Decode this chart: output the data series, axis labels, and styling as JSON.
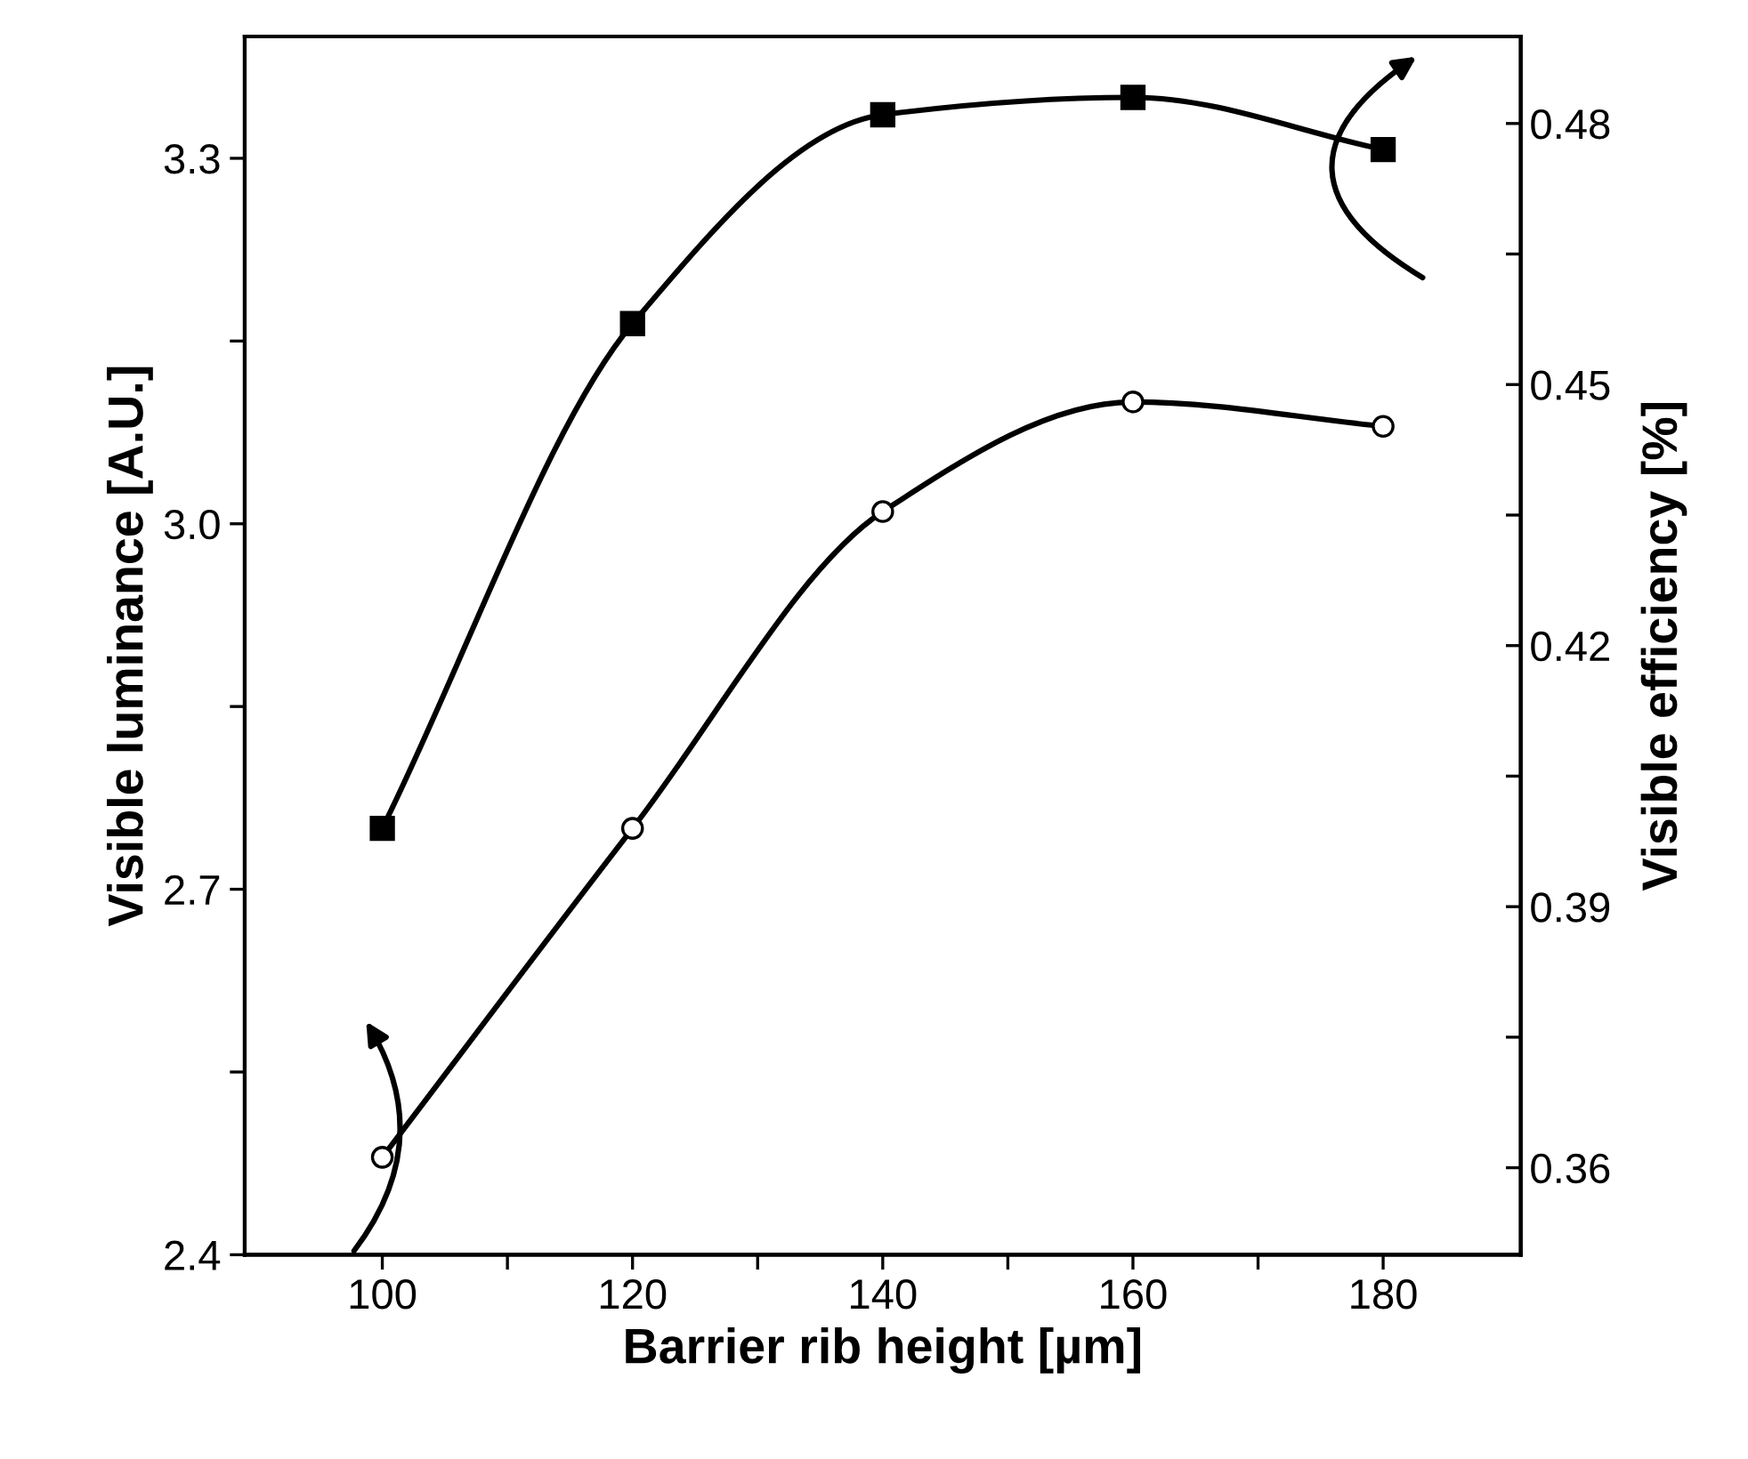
{
  "chart_data": {
    "type": "line",
    "xlabel": "Barrier rib height [µm]",
    "ylabel": "Visible luminance [A.U.]",
    "y2label": "Visible efficiency [%]",
    "x": [
      100,
      120,
      140,
      160,
      180
    ],
    "series": [
      {
        "color": "#000000",
        "marker": "circle",
        "values": [
          2.48,
          2.75,
          3.01,
          3.1,
          3.08
        ]
      },
      {
        "color": "#000000",
        "marker": "square",
        "axis": "y2",
        "values": [
          0.399,
          0.457,
          0.481,
          0.483,
          0.477
        ]
      }
    ],
    "xlim": [
      89,
      191
    ],
    "xticks": [
      100,
      {
        "value": 110,
        "label": null
      },
      120,
      {
        "value": 130,
        "label": null
      },
      140,
      {
        "value": 150,
        "label": null
      },
      160,
      {
        "value": 170,
        "label": null
      },
      180
    ],
    "ylim": [
      2.4,
      3.4
    ],
    "yticks": [
      2.4,
      {
        "value": 2.55,
        "label": null
      },
      2.7,
      {
        "value": 2.85,
        "label": null
      },
      {
        "value": 3.0,
        "label": "3.0"
      },
      {
        "value": 3.15,
        "label": null
      },
      3.3
    ],
    "y2lim": [
      0.35,
      0.49
    ],
    "y2ticks": [
      0.36,
      {
        "value": 0.375,
        "label": null
      },
      0.39,
      {
        "value": 0.405,
        "label": null
      },
      0.42,
      {
        "value": 0.435,
        "label": null
      },
      0.45,
      {
        "value": 0.465,
        "label": null
      },
      0.48
    ],
    "grid": false,
    "legend": false,
    "line_style": "solid"
  }
}
